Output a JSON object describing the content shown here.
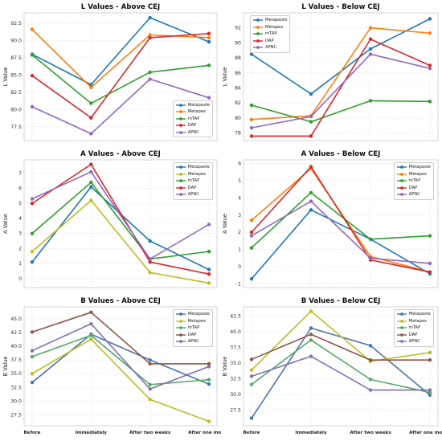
{
  "chart_data": [
    {
      "type": "line",
      "title": "L Values - Above CEJ",
      "ylabel": "L Value",
      "xlabel": "",
      "categories": [
        "Before",
        "Immediately",
        "After two weeks",
        "After one month"
      ],
      "ylim": [
        75.5,
        94
      ],
      "yticks": [
        77.5,
        80.0,
        82.5,
        85.0,
        87.5,
        90.0,
        92.5
      ],
      "ytick_labels": [
        "77.5",
        "80.0",
        "82.5",
        "85.0",
        "87.5",
        "90.0",
        "92.5"
      ],
      "show_xtick_labels": false,
      "grid": true,
      "legend_position": "lower-right",
      "series": [
        {
          "name": "Metapaste",
          "color": "#1f77b4",
          "values": [
            88.0,
            83.6,
            93.3,
            89.8
          ]
        },
        {
          "name": "Metapex",
          "color": "#ff7f0e",
          "values": [
            91.6,
            83.2,
            90.8,
            90.4
          ]
        },
        {
          "name": "mTAP",
          "color": "#2ca02c",
          "values": [
            87.9,
            80.9,
            85.4,
            86.4
          ]
        },
        {
          "name": "DAP",
          "color": "#d62728",
          "values": [
            84.9,
            78.8,
            90.4,
            91.0
          ]
        },
        {
          "name": "APNC",
          "color": "#9467bd",
          "values": [
            80.4,
            76.5,
            84.4,
            81.7
          ]
        }
      ]
    },
    {
      "type": "line",
      "title": "L Values - Below CEJ",
      "ylabel": "L Value",
      "xlabel": "",
      "categories": [
        "Before",
        "Immediately",
        "After two weeks",
        "After one month"
      ],
      "ylim": [
        77,
        94
      ],
      "yticks": [
        78,
        80,
        82,
        84,
        86,
        88,
        90,
        92
      ],
      "ytick_labels": [
        "78",
        "80",
        "82",
        "84",
        "86",
        "88",
        "90",
        "92"
      ],
      "show_xtick_labels": false,
      "grid": true,
      "legend_position": "upper-left",
      "series": [
        {
          "name": "Metapaste",
          "color": "#1f77b4",
          "values": [
            88.5,
            83.2,
            89.2,
            93.2
          ]
        },
        {
          "name": "Metapex",
          "color": "#ff7f0e",
          "values": [
            79.8,
            80.3,
            92.0,
            91.3
          ]
        },
        {
          "name": "mTAP",
          "color": "#2ca02c",
          "values": [
            81.7,
            79.5,
            82.3,
            82.2
          ]
        },
        {
          "name": "DAP",
          "color": "#d62728",
          "values": [
            77.6,
            77.6,
            90.5,
            87.0
          ]
        },
        {
          "name": "APNC",
          "color": "#9467bd",
          "values": [
            78.7,
            80.2,
            88.5,
            86.6
          ]
        }
      ]
    },
    {
      "type": "line",
      "title": "A Values - Above CEJ",
      "ylabel": "A Value",
      "xlabel": "",
      "categories": [
        "Before",
        "Immediately",
        "After two weeks",
        "After one month"
      ],
      "ylim": [
        -0.6,
        7.9
      ],
      "yticks": [
        0,
        1,
        2,
        3,
        4,
        5,
        6,
        7
      ],
      "ytick_labels": [
        "0",
        "1",
        "2",
        "3",
        "4",
        "5",
        "6",
        "7"
      ],
      "show_xtick_labels": false,
      "grid": true,
      "legend_position": "upper-right",
      "series": [
        {
          "name": "Metapaste",
          "color": "#1f77b4",
          "values": [
            1.1,
            6.1,
            2.5,
            0.6
          ]
        },
        {
          "name": "Metapex",
          "color": "#bcbd22",
          "values": [
            1.8,
            5.2,
            0.4,
            -0.3
          ]
        },
        {
          "name": "mTAP",
          "color": "#2ca02c",
          "values": [
            3.0,
            6.4,
            1.3,
            1.8
          ]
        },
        {
          "name": "DAP",
          "color": "#d62728",
          "values": [
            5.0,
            7.6,
            1.1,
            0.3
          ]
        },
        {
          "name": "APNC",
          "color": "#9467bd",
          "values": [
            5.3,
            7.1,
            1.3,
            3.6
          ]
        }
      ]
    },
    {
      "type": "line",
      "title": "A Values - Below CEJ",
      "ylabel": "A Value",
      "xlabel": "",
      "categories": [
        "Before",
        "Immediately",
        "After two weeks",
        "After one month"
      ],
      "ylim": [
        -1.2,
        6.2
      ],
      "yticks": [
        -1,
        0,
        1,
        2,
        3,
        4,
        5,
        6
      ],
      "ytick_labels": [
        "-1",
        "0",
        "1",
        "2",
        "3",
        "4",
        "5",
        "6"
      ],
      "show_xtick_labels": false,
      "grid": true,
      "legend_position": "upper-right",
      "series": [
        {
          "name": "Metapaste",
          "color": "#1f77b4",
          "values": [
            -0.7,
            3.3,
            1.6,
            -0.4
          ]
        },
        {
          "name": "Metapex",
          "color": "#ff7f0e",
          "values": [
            2.7,
            5.7,
            0.6,
            -0.3
          ]
        },
        {
          "name": "mTAP",
          "color": "#2ca02c",
          "values": [
            1.1,
            4.3,
            1.6,
            1.8
          ]
        },
        {
          "name": "DAP",
          "color": "#d62728",
          "values": [
            2.0,
            5.8,
            0.4,
            -0.3
          ]
        },
        {
          "name": "APNC",
          "color": "#9467bd",
          "values": [
            1.8,
            3.8,
            0.5,
            0.2
          ]
        }
      ]
    },
    {
      "type": "line",
      "title": "B Values - Above CEJ",
      "ylabel": "B Value",
      "xlabel": "",
      "categories": [
        "Before",
        "Immediately",
        "After two weeks",
        "After one month"
      ],
      "ylim": [
        25.5,
        47.2
      ],
      "yticks": [
        27.5,
        30.0,
        32.5,
        35.0,
        37.5,
        40.0,
        42.5,
        45.0
      ],
      "ytick_labels": [
        "27.5",
        "30.0",
        "32.5",
        "35.0",
        "37.5",
        "40.0",
        "42.5",
        "45.0"
      ],
      "show_xtick_labels": true,
      "grid": true,
      "legend_position": "upper-right",
      "series": [
        {
          "name": "Metapaste",
          "color": "#4c72b0",
          "values": [
            33.4,
            42.2,
            37.5,
            33.1
          ]
        },
        {
          "name": "Metapex",
          "color": "#bcbd22",
          "values": [
            35.0,
            41.3,
            30.3,
            26.3
          ]
        },
        {
          "name": "mTAP",
          "color": "#55a868",
          "values": [
            38.1,
            42.0,
            33.0,
            33.9
          ]
        },
        {
          "name": "DAP",
          "color": "#8c564b",
          "values": [
            42.6,
            46.2,
            36.8,
            36.8
          ]
        },
        {
          "name": "APNC",
          "color": "#8172b3",
          "values": [
            39.2,
            44.1,
            32.2,
            36.3
          ]
        }
      ]
    },
    {
      "type": "line",
      "title": "B Values - Below CEJ",
      "ylabel": "B Value",
      "xlabel": "",
      "categories": [
        "Before",
        "Immediately",
        "After two weeks",
        "After one month"
      ],
      "ylim": [
        25,
        44
      ],
      "yticks": [
        27.5,
        30.0,
        32.5,
        35.0,
        37.5,
        40.0,
        42.5
      ],
      "ytick_labels": [
        "27.5",
        "30.0",
        "32.5",
        "35.0",
        "37.5",
        "40.0",
        "42.5"
      ],
      "show_xtick_labels": true,
      "grid": true,
      "legend_position": "upper-right",
      "series": [
        {
          "name": "Metapaste",
          "color": "#4c72b0",
          "values": [
            26.2,
            40.6,
            37.8,
            29.9
          ]
        },
        {
          "name": "Metapex",
          "color": "#bcbd22",
          "values": [
            33.9,
            43.3,
            35.3,
            36.7
          ]
        },
        {
          "name": "mTAP",
          "color": "#55a868",
          "values": [
            31.6,
            38.7,
            32.4,
            30.3
          ]
        },
        {
          "name": "DAP",
          "color": "#8c564b",
          "values": [
            35.6,
            39.6,
            35.5,
            35.5
          ]
        },
        {
          "name": "APNC",
          "color": "#8172b3",
          "values": [
            32.9,
            36.1,
            30.7,
            30.7
          ]
        }
      ]
    }
  ]
}
